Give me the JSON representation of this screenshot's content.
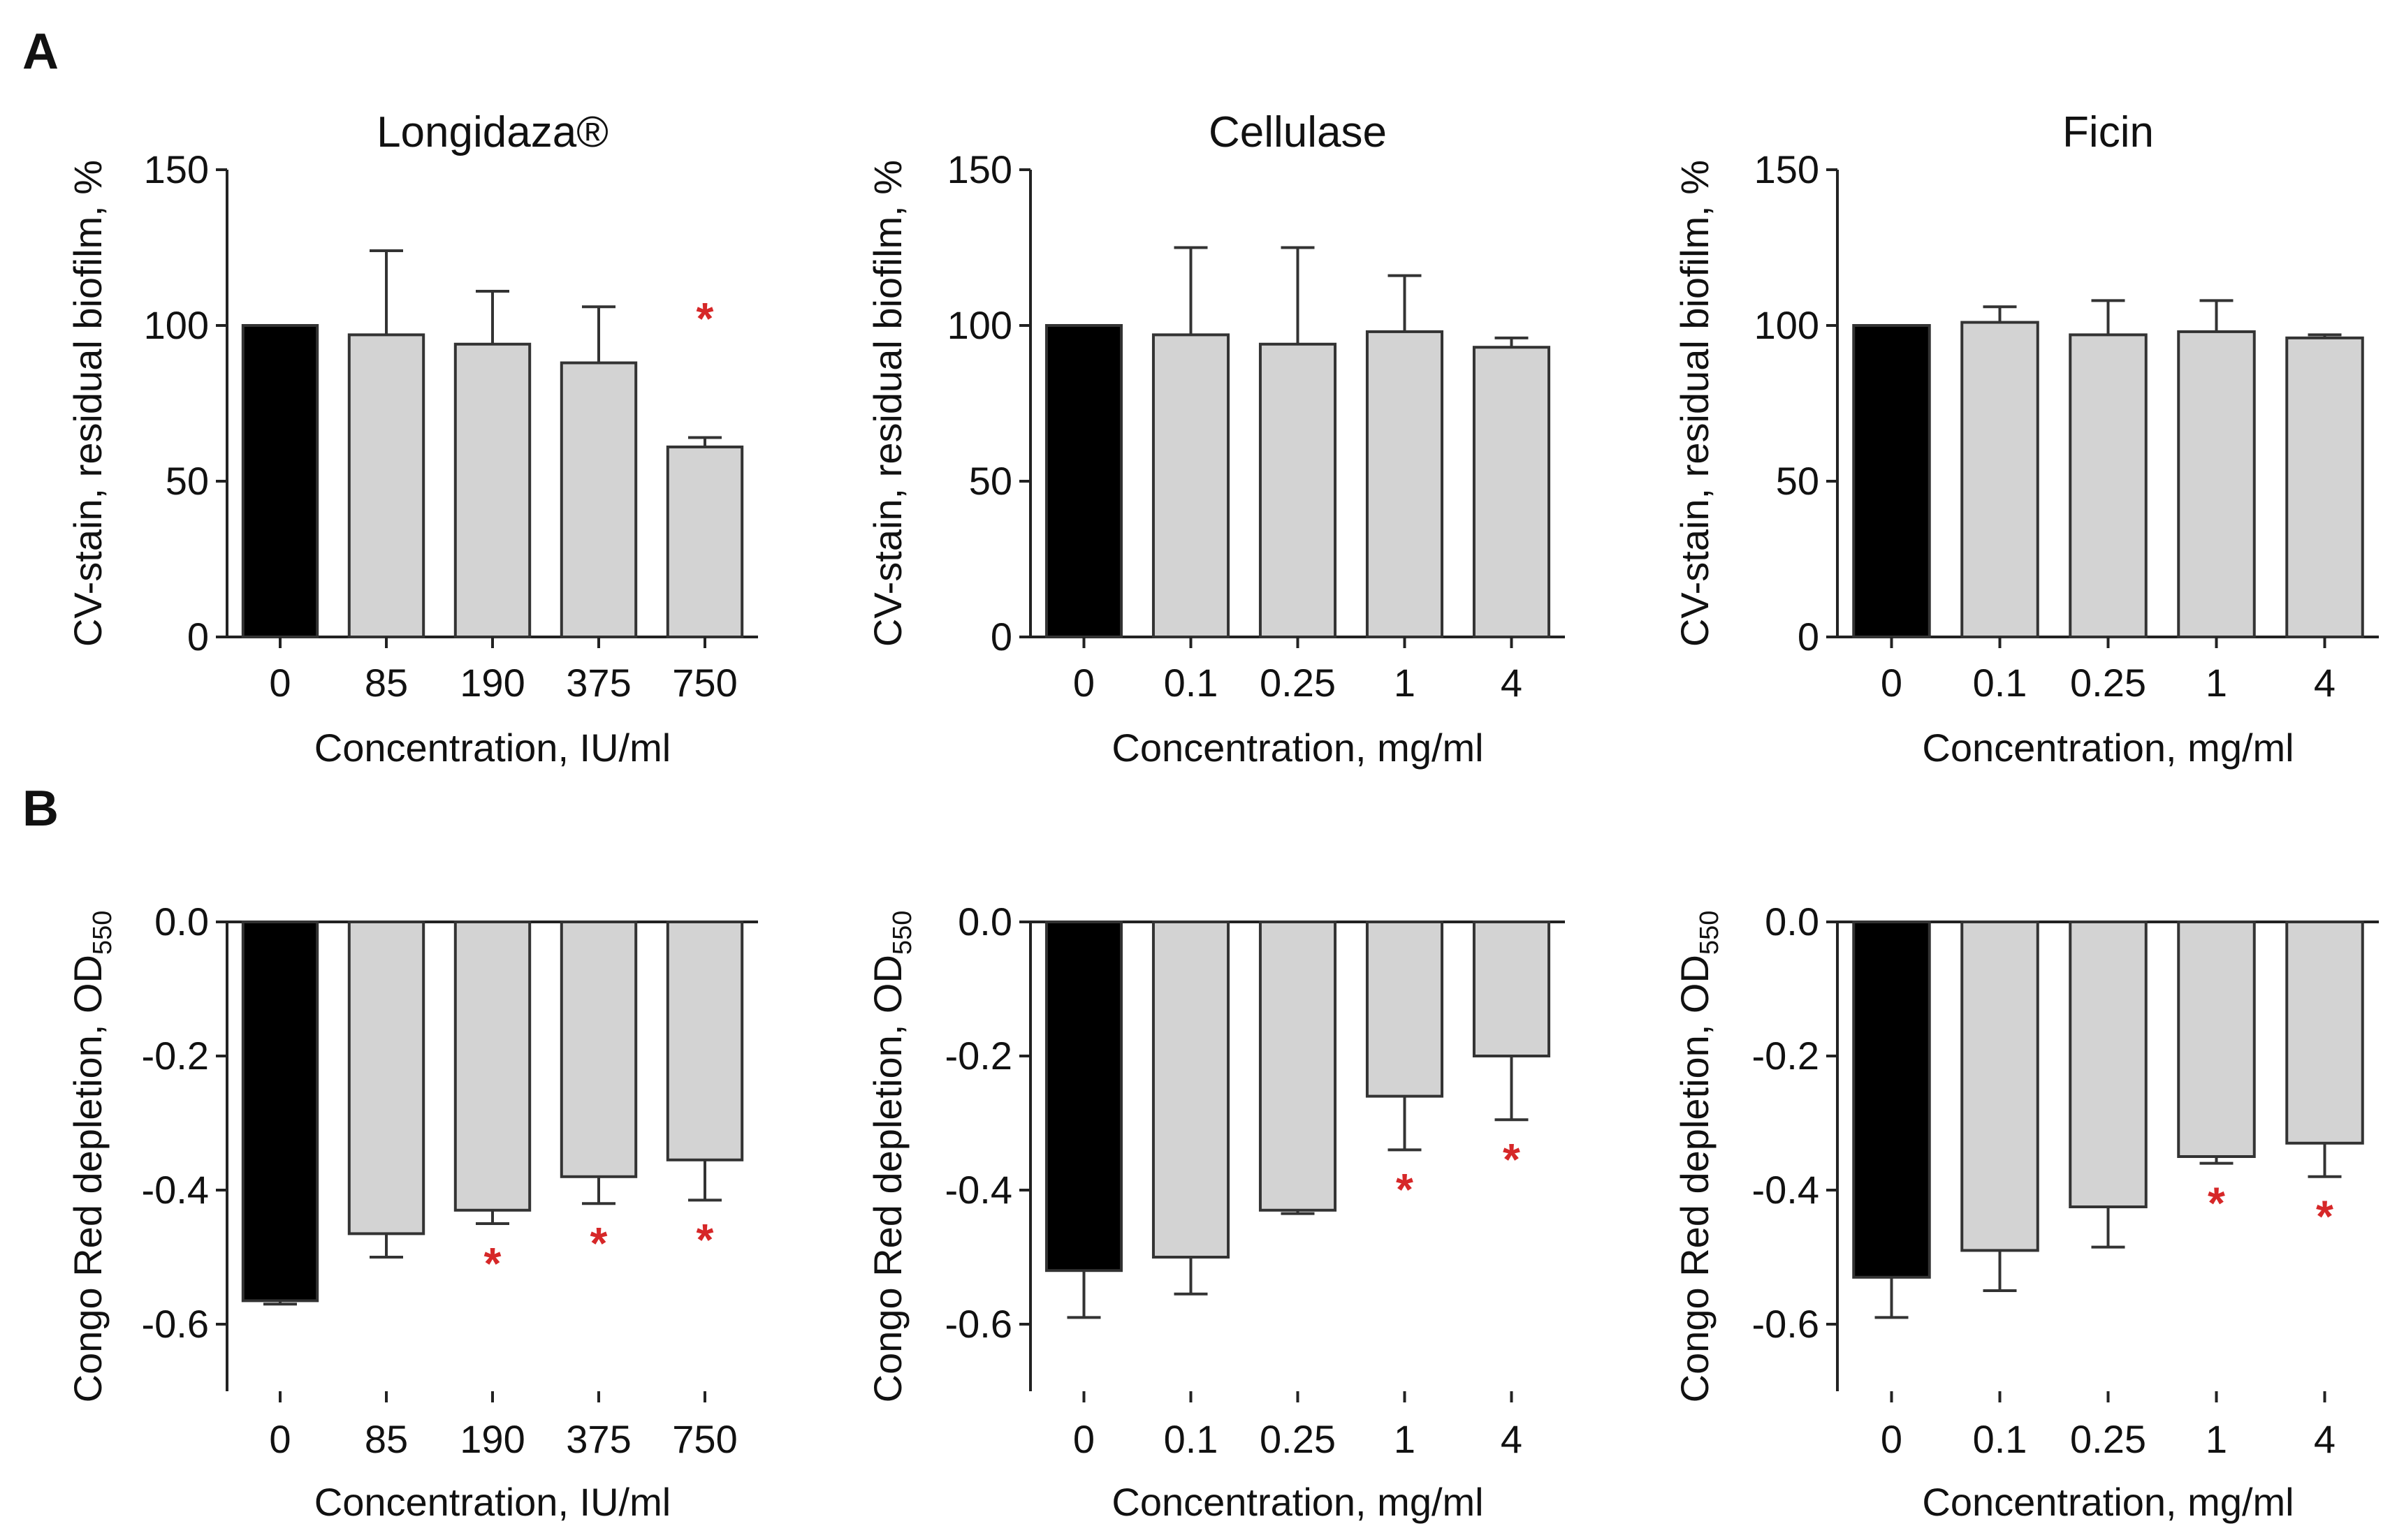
{
  "panels": [
    {
      "label": "A"
    },
    {
      "label": "B"
    }
  ],
  "colors": {
    "control_bar": "#000000",
    "treatment_bar": "#d3d3d3",
    "bar_outline": "#333333",
    "significance": "#d62728"
  },
  "significance_symbol": "*",
  "chart_data": [
    {
      "type": "bar",
      "panel": "A",
      "title": "Longidaza®",
      "xlabel": "Concentration, IU/ml",
      "ylabel": "CV-stain, residual biofilm, %",
      "ylim": [
        0,
        150
      ],
      "yticks": [
        "0",
        "50",
        "100",
        "150"
      ],
      "categories": [
        "0",
        "85",
        "190",
        "375",
        "750"
      ],
      "values": [
        100,
        97,
        94,
        88,
        61
      ],
      "errors": [
        0,
        27,
        17,
        18,
        3
      ],
      "significant": [
        false,
        false,
        false,
        false,
        true
      ]
    },
    {
      "type": "bar",
      "panel": "A",
      "title": "Cellulase",
      "xlabel": "Concentration, mg/ml",
      "ylabel": "CV-stain, residual biofilm, %",
      "ylim": [
        0,
        150
      ],
      "yticks": [
        "0",
        "50",
        "100",
        "150"
      ],
      "categories": [
        "0",
        "0.1",
        "0.25",
        "1",
        "4"
      ],
      "values": [
        100,
        97,
        94,
        98,
        93
      ],
      "errors": [
        0,
        28,
        31,
        18,
        3
      ],
      "significant": [
        false,
        false,
        false,
        false,
        false
      ]
    },
    {
      "type": "bar",
      "panel": "A",
      "title": "Ficin",
      "xlabel": "Concentration, mg/ml",
      "ylabel": "CV-stain, residual biofilm, %",
      "ylim": [
        0,
        150
      ],
      "yticks": [
        "0",
        "50",
        "100",
        "150"
      ],
      "categories": [
        "0",
        "0.1",
        "0.25",
        "1",
        "4"
      ],
      "values": [
        100,
        101,
        97,
        98,
        96
      ],
      "errors": [
        0,
        5,
        11,
        10,
        1
      ],
      "significant": [
        false,
        false,
        false,
        false,
        false
      ]
    },
    {
      "type": "bar",
      "panel": "B",
      "title": "",
      "xlabel": "Concentration, IU/ml",
      "ylabel": "Congo Red depletion, OD",
      "ylabel_subscript": "550",
      "ylim": [
        -0.7,
        0
      ],
      "yticks": [
        "0.0",
        "-0.2",
        "-0.4",
        "-0.6"
      ],
      "categories": [
        "0",
        "85",
        "190",
        "375",
        "750"
      ],
      "values": [
        -0.565,
        -0.465,
        -0.43,
        -0.38,
        -0.355
      ],
      "errors": [
        0.005,
        0.035,
        0.02,
        0.04,
        0.06
      ],
      "significant": [
        false,
        false,
        true,
        true,
        true
      ]
    },
    {
      "type": "bar",
      "panel": "B",
      "title": "",
      "xlabel": "Concentration, mg/ml",
      "ylabel": "Congo Red depletion, OD",
      "ylabel_subscript": "550",
      "ylim": [
        -0.7,
        0
      ],
      "yticks": [
        "0.0",
        "-0.2",
        "-0.4",
        "-0.6"
      ],
      "categories": [
        "0",
        "0.1",
        "0.25",
        "1",
        "4"
      ],
      "values": [
        -0.52,
        -0.5,
        -0.43,
        -0.26,
        -0.2
      ],
      "errors": [
        0.07,
        0.055,
        0.005,
        0.08,
        0.095
      ],
      "significant": [
        false,
        false,
        false,
        true,
        true
      ]
    },
    {
      "type": "bar",
      "panel": "B",
      "title": "",
      "xlabel": "Concentration, mg/ml",
      "ylabel": "Congo Red depletion, OD",
      "ylabel_subscript": "550",
      "ylim": [
        -0.7,
        0
      ],
      "yticks": [
        "0.0",
        "-0.2",
        "-0.4",
        "-0.6"
      ],
      "categories": [
        "0",
        "0.1",
        "0.25",
        "1",
        "4"
      ],
      "values": [
        -0.53,
        -0.49,
        -0.425,
        -0.35,
        -0.33
      ],
      "errors": [
        0.06,
        0.06,
        0.06,
        0.01,
        0.05
      ],
      "significant": [
        false,
        false,
        false,
        true,
        true
      ]
    }
  ]
}
